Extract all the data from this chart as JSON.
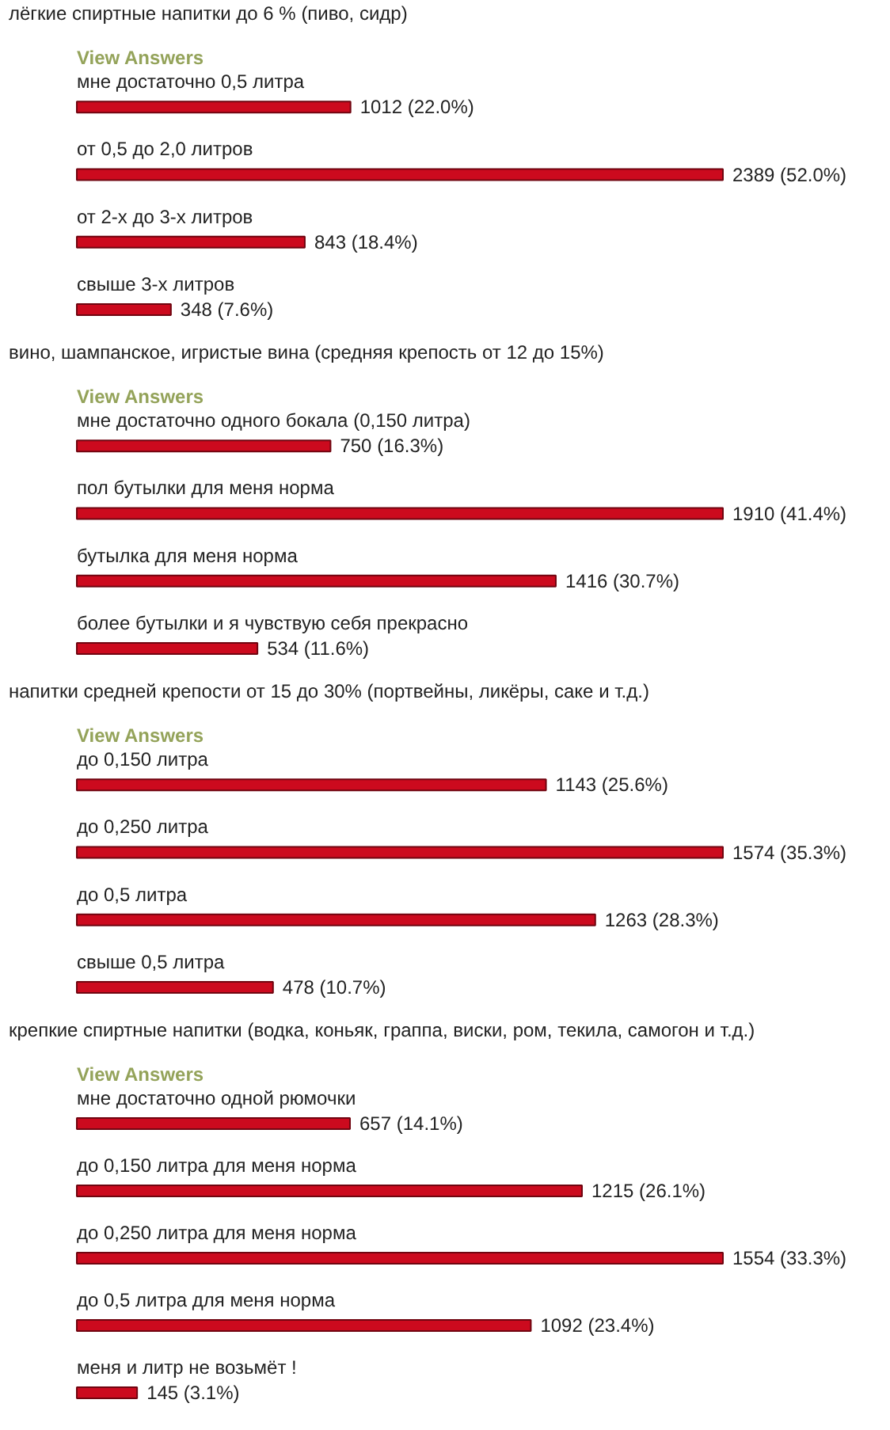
{
  "chart_data": [
    {
      "type": "bar",
      "orientation": "horizontal",
      "title": "лёгкие спиртные напитки до 6 % (пиво, сидр)",
      "annotations": [
        "View Answers"
      ],
      "categories": [
        "мне достаточно 0,5 литра",
        "от 0,5 до 2,0 литров",
        "от 2-х до 3-х литров",
        "свыше 3-х литров"
      ],
      "values": [
        1012,
        2389,
        843,
        348
      ],
      "value_labels": [
        "1012 (22.0%)",
        "2389 (52.0%)",
        "843 (18.4%)",
        "348 (7.6%)"
      ],
      "color": "#cc0a1e"
    },
    {
      "type": "bar",
      "orientation": "horizontal",
      "title": "вино, шампанское, игристые вина (средняя крепость от 12 до 15%)",
      "annotations": [
        "View Answers"
      ],
      "categories": [
        "мне достаточно одного бокала (0,150 литра)",
        "пол бутылки для меня норма",
        "бутылка для меня норма",
        "более бутылки и я чувствую себя прекрасно"
      ],
      "values": [
        750,
        1910,
        1416,
        534
      ],
      "value_labels": [
        "750 (16.3%)",
        "1910 (41.4%)",
        "1416 (30.7%)",
        "534 (11.6%)"
      ],
      "color": "#cc0a1e"
    },
    {
      "type": "bar",
      "orientation": "horizontal",
      "title": "напитки средней крепости от 15 до 30% (портвейны, ликёры, саке и т.д.)",
      "annotations": [
        "View Answers"
      ],
      "categories": [
        "до 0,150 литра",
        "до 0,250 литра",
        "до 0,5 литра",
        "свыше 0,5 литра"
      ],
      "values": [
        1143,
        1574,
        1263,
        478
      ],
      "value_labels": [
        "1143 (25.6%)",
        "1574 (35.3%)",
        "1263 (28.3%)",
        "478 (10.7%)"
      ],
      "color": "#cc0a1e"
    },
    {
      "type": "bar",
      "orientation": "horizontal",
      "title": "крепкие спиртные напитки (водка, коньяк, граппа, виски, ром, текила, самогон и т.д.)",
      "annotations": [
        "View Answers"
      ],
      "categories": [
        "мне достаточно одной рюмочки",
        "до 0,150 литра для меня норма",
        "до 0,250 литра для меня норма",
        "до 0,5 литра для меня норма",
        "меня и литр не возьмёт !"
      ],
      "values": [
        657,
        1215,
        1554,
        1092,
        145
      ],
      "value_labels": [
        "657 (14.1%)",
        "1215 (26.1%)",
        "1554 (33.3%)",
        "1092 (23.4%)",
        "145 (3.1%)"
      ],
      "color": "#cc0a1e"
    }
  ]
}
